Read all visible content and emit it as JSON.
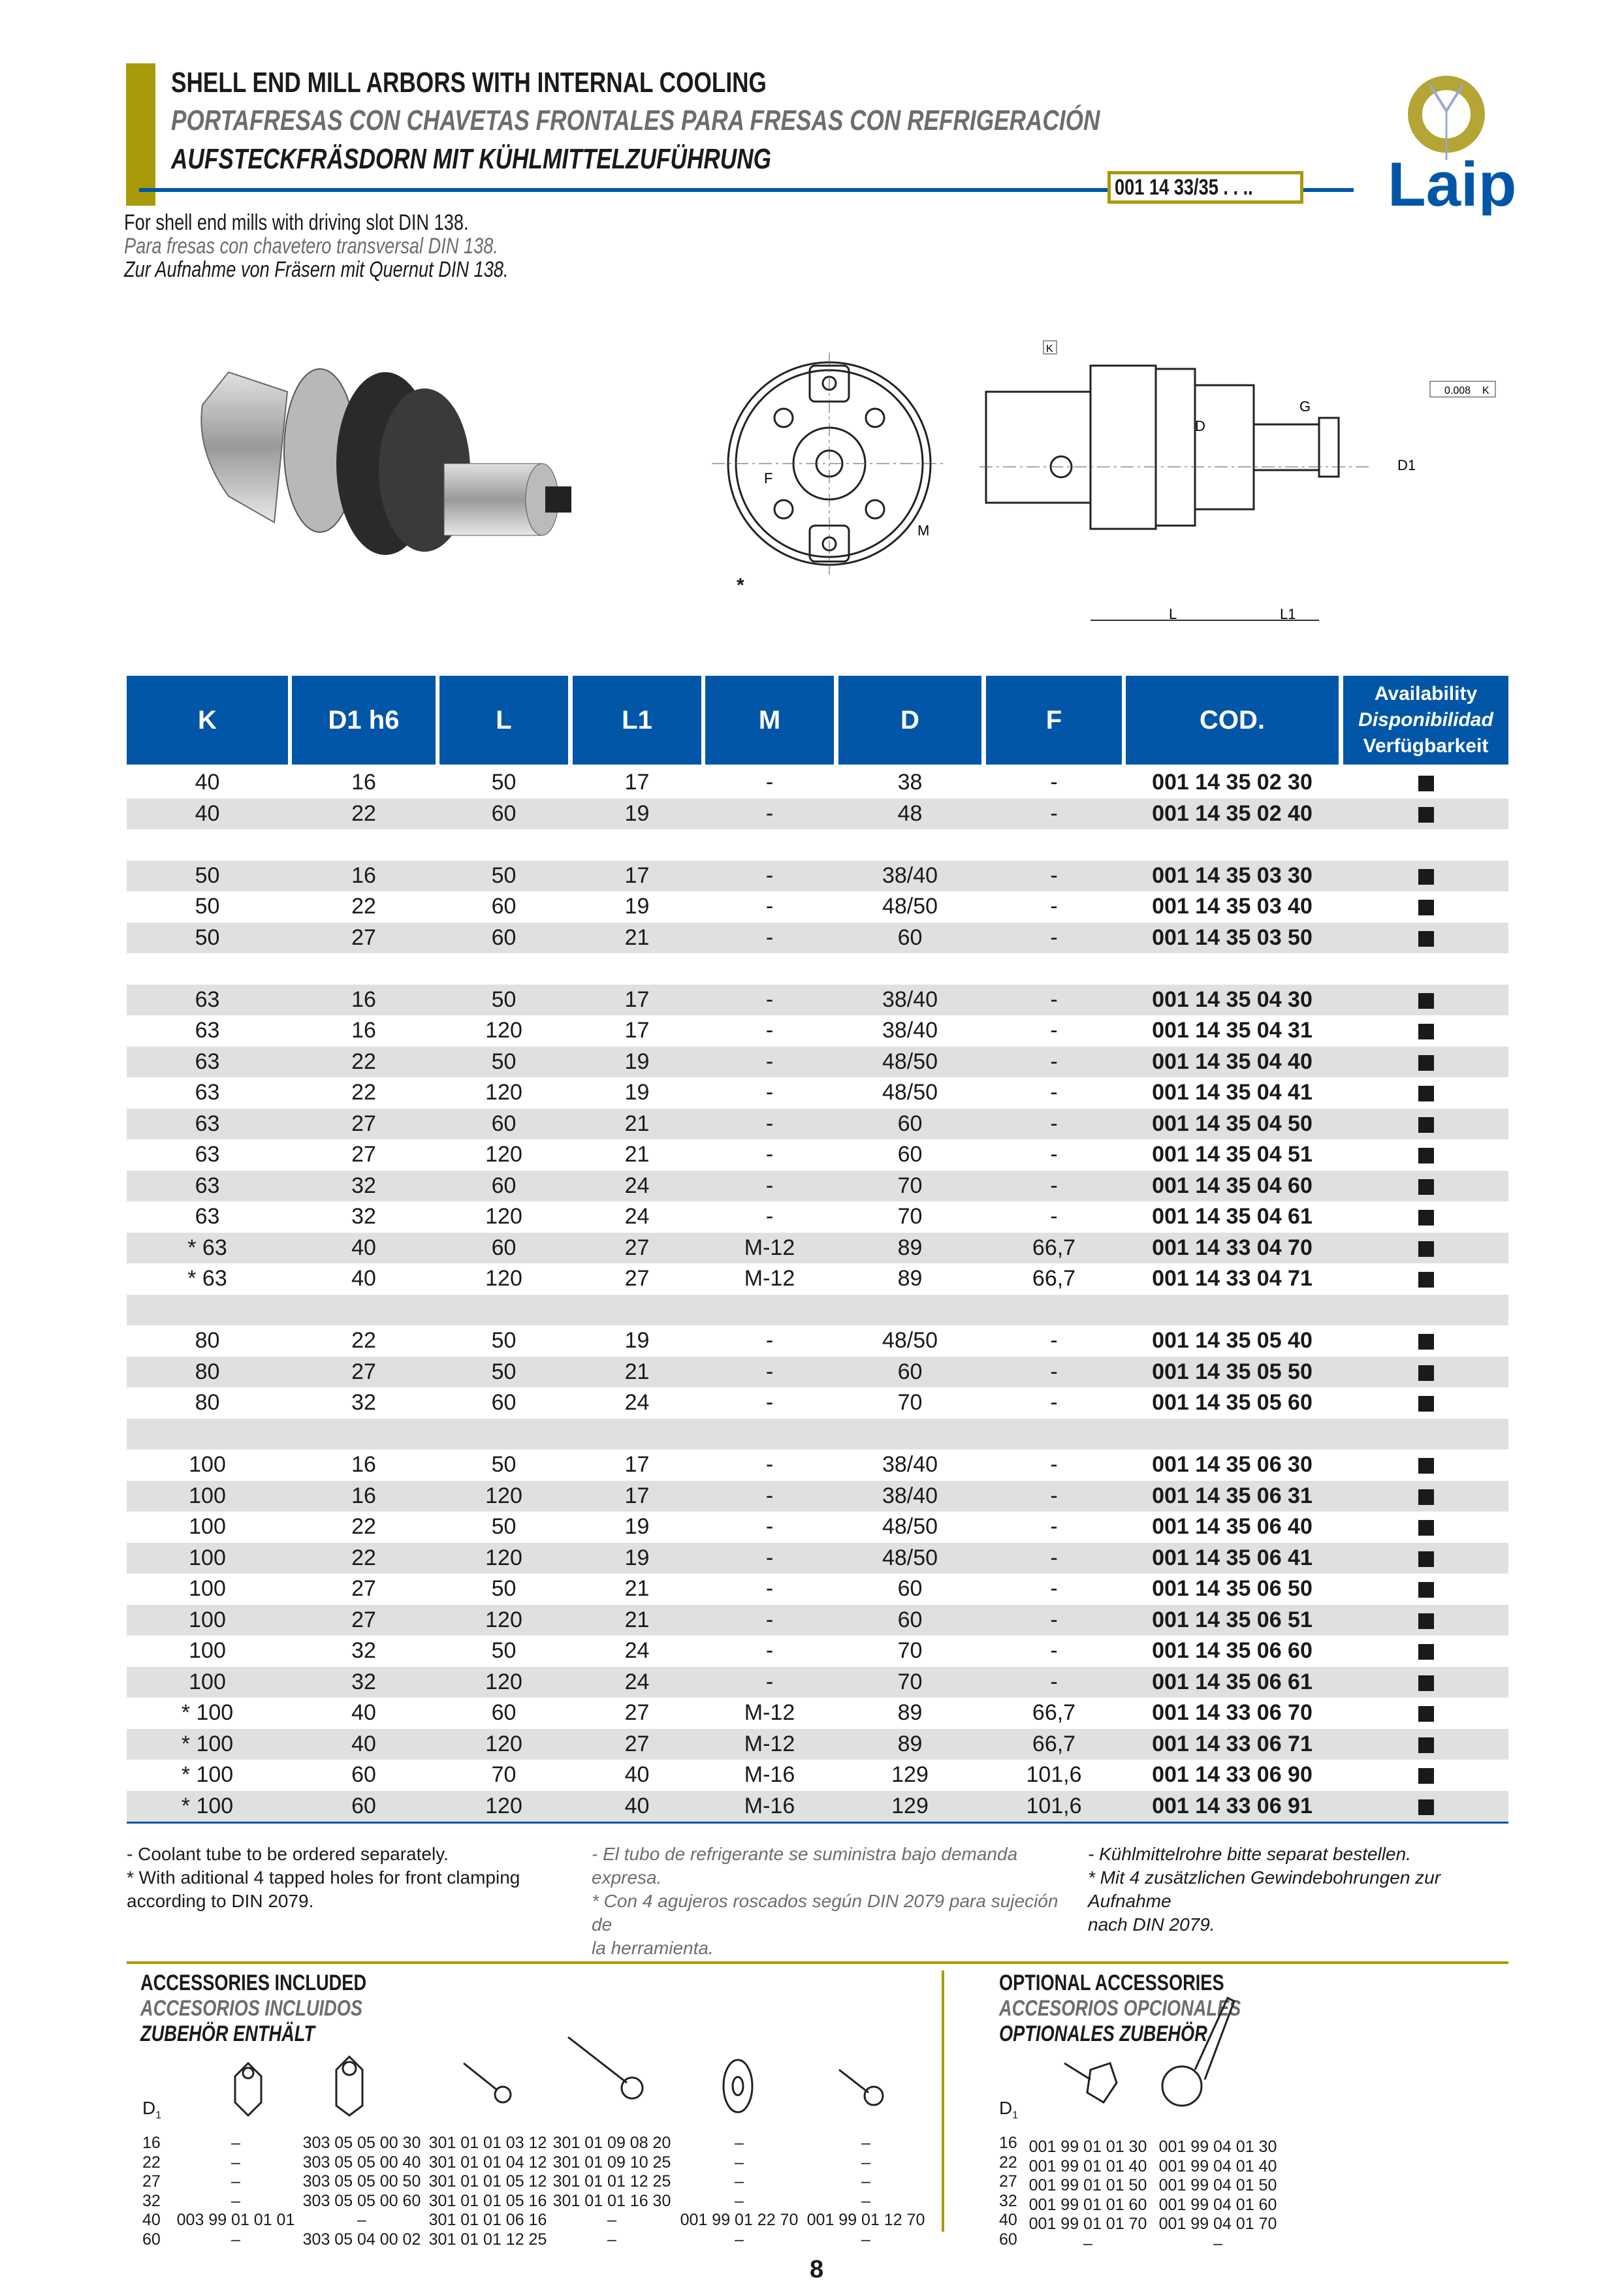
{
  "header": {
    "title_en": "SHELL END MILL ARBORS WITH INTERNAL COOLING",
    "title_es": "PORTAFRESAS CON CHAVETAS FRONTALES PARA FRESAS CON REFRIGERACIÓN",
    "title_de": "AUFSTECKFRÄSDORN MIT KÜHLMITTELZUFÜHRUNG",
    "code": "001 14 33/35 . . ..",
    "logo_text": "Laip",
    "colors": {
      "brand_blue": "#0256a7",
      "gold": "#a99a0a",
      "row_gray": "#e0e0e0"
    }
  },
  "intro": {
    "en": "For shell end mills with driving slot DIN 138.",
    "es": "Para fresas con chavetero transversal DIN 138.",
    "de": "Zur Aufnahme von Fräsern mit Quernut DIN 138."
  },
  "drawing_labels": {
    "star": "*",
    "K": "K",
    "F": "F",
    "M": "M",
    "D": "D",
    "G": "G",
    "D1": "D1",
    "L": "L",
    "L1": "L1",
    "tolerance": "0.008",
    "tolerance_ref": "K"
  },
  "table": {
    "headers": [
      "K",
      "D1 h6",
      "L",
      "L1",
      "M",
      "D",
      "F",
      "COD."
    ],
    "availability_header": [
      "Availability",
      "Disponibilidad",
      "Verfügbarkeit"
    ],
    "rows": [
      [
        "40",
        "16",
        "50",
        "17",
        "-",
        "38",
        "-",
        "001 14 35 02 30",
        true
      ],
      [
        "40",
        "22",
        "60",
        "19",
        "-",
        "48",
        "-",
        "001 14 35 02 40",
        true
      ],
      null,
      [
        "50",
        "16",
        "50",
        "17",
        "-",
        "38/40",
        "-",
        "001 14 35 03 30",
        true
      ],
      [
        "50",
        "22",
        "60",
        "19",
        "-",
        "48/50",
        "-",
        "001 14 35 03 40",
        true
      ],
      [
        "50",
        "27",
        "60",
        "21",
        "-",
        "60",
        "-",
        "001 14 35 03 50",
        true
      ],
      null,
      [
        "63",
        "16",
        "50",
        "17",
        "-",
        "38/40",
        "-",
        "001 14 35 04 30",
        true
      ],
      [
        "63",
        "16",
        "120",
        "17",
        "-",
        "38/40",
        "-",
        "001 14 35 04 31",
        true
      ],
      [
        "63",
        "22",
        "50",
        "19",
        "-",
        "48/50",
        "-",
        "001 14 35 04 40",
        true
      ],
      [
        "63",
        "22",
        "120",
        "19",
        "-",
        "48/50",
        "-",
        "001 14 35 04 41",
        true
      ],
      [
        "63",
        "27",
        "60",
        "21",
        "-",
        "60",
        "-",
        "001 14 35 04 50",
        true
      ],
      [
        "63",
        "27",
        "120",
        "21",
        "-",
        "60",
        "-",
        "001 14 35 04 51",
        true
      ],
      [
        "63",
        "32",
        "60",
        "24",
        "-",
        "70",
        "-",
        "001 14 35 04 60",
        true
      ],
      [
        "63",
        "32",
        "120",
        "24",
        "-",
        "70",
        "-",
        "001 14 35 04 61",
        true
      ],
      [
        "* 63",
        "40",
        "60",
        "27",
        "M-12",
        "89",
        "66,7",
        "001 14 33 04 70",
        true
      ],
      [
        "* 63",
        "40",
        "120",
        "27",
        "M-12",
        "89",
        "66,7",
        "001 14 33 04 71",
        true
      ],
      null,
      [
        "80",
        "22",
        "50",
        "19",
        "-",
        "48/50",
        "-",
        "001 14 35 05 40",
        true
      ],
      [
        "80",
        "27",
        "50",
        "21",
        "-",
        "60",
        "-",
        "001 14 35 05 50",
        true
      ],
      [
        "80",
        "32",
        "60",
        "24",
        "-",
        "70",
        "-",
        "001 14 35 05 60",
        true
      ],
      null,
      [
        "100",
        "16",
        "50",
        "17",
        "-",
        "38/40",
        "-",
        "001 14 35 06 30",
        true
      ],
      [
        "100",
        "16",
        "120",
        "17",
        "-",
        "38/40",
        "-",
        "001 14 35 06 31",
        true
      ],
      [
        "100",
        "22",
        "50",
        "19",
        "-",
        "48/50",
        "-",
        "001 14 35 06 40",
        true
      ],
      [
        "100",
        "22",
        "120",
        "19",
        "-",
        "48/50",
        "-",
        "001 14 35 06 41",
        true
      ],
      [
        "100",
        "27",
        "50",
        "21",
        "-",
        "60",
        "-",
        "001 14 35 06 50",
        true
      ],
      [
        "100",
        "27",
        "120",
        "21",
        "-",
        "60",
        "-",
        "001 14 35 06 51",
        true
      ],
      [
        "100",
        "32",
        "50",
        "24",
        "-",
        "70",
        "-",
        "001 14 35 06 60",
        true
      ],
      [
        "100",
        "32",
        "120",
        "24",
        "-",
        "70",
        "-",
        "001 14 35 06 61",
        true
      ],
      [
        "* 100",
        "40",
        "60",
        "27",
        "M-12",
        "89",
        "66,7",
        "001 14 33 06 70",
        true
      ],
      [
        "* 100",
        "40",
        "120",
        "27",
        "M-12",
        "89",
        "66,7",
        "001 14 33 06 71",
        true
      ],
      [
        "* 100",
        "60",
        "70",
        "40",
        "M-16",
        "129",
        "101,6",
        "001 14 33 06 90",
        true
      ],
      [
        "* 100",
        "60",
        "120",
        "40",
        "M-16",
        "129",
        "101,6",
        "001 14 33 06 91",
        true
      ]
    ]
  },
  "footnotes": {
    "en": [
      "- Coolant tube to be ordered separately.",
      "* With aditional 4 tapped holes for front clamping",
      "according to DIN 2079."
    ],
    "es": [
      "- El tubo de refrigerante se suministra bajo demanda expresa.",
      "* Con 4 agujeros roscados según DIN 2079 para sujeción de",
      "la herramienta."
    ],
    "de": [
      "- Kühlmittelrohre bitte separat bestellen.",
      "* Mit 4 zusätzlichen Gewindebohrungen zur Aufnahme",
      "nach DIN 2079."
    ]
  },
  "accessories_included": {
    "title_en": "ACCESSORIES INCLUDED",
    "title_es": "ACCESORIOS INCLUIDOS",
    "title_de": "ZUBEHÖR ENTHÄLT",
    "d1_label": "D",
    "d1_sub": "1",
    "d1_values": [
      "16",
      "22",
      "27",
      "32",
      "40",
      "60"
    ],
    "columns": [
      [
        "–",
        "–",
        "–",
        "–",
        "003 99 01 01 01",
        "–"
      ],
      [
        "303 05 05 00 30",
        "303 05 05 00 40",
        "303 05 05 00 50",
        "303 05 05 00 60",
        "–",
        "303 05 04 00 02"
      ],
      [
        "301 01 01 03 12",
        "301 01 01 04 12",
        "301 01 01 05 12",
        "301 01 01 05 16",
        "301 01 01 06 16",
        "301 01 01 12 25"
      ],
      [
        "301 01 09 08 20",
        "301 01 09 10 25",
        "301 01 01 12 25",
        "301 01 01 16 30",
        "–",
        "–"
      ],
      [
        "–",
        "–",
        "–",
        "–",
        "001 99 01 22 70",
        "–"
      ],
      [
        "–",
        "–",
        "–",
        "–",
        "001 99 01 12 70",
        "–"
      ]
    ]
  },
  "accessories_optional": {
    "title_en": "OPTIONAL ACCESSORIES",
    "title_es": "ACCESORIOS OPCIONALES",
    "title_de": "OPTIONALES ZUBEHÖR",
    "d1_label": "D",
    "d1_sub": "1",
    "d1_values": [
      "16",
      "22",
      "27",
      "32",
      "40",
      "60"
    ],
    "columns": [
      [
        "001 99 01 01 30",
        "001 99 01 01 40",
        "001 99 01 01 50",
        "001 99 01 01 60",
        "001 99 01 01 70",
        "–"
      ],
      [
        "001 99 04 01 30",
        "001 99 04 01 40",
        "001 99 04 01 50",
        "001 99 04 01 60",
        "001 99 04 01 70",
        "–"
      ]
    ]
  },
  "page_number": "8"
}
